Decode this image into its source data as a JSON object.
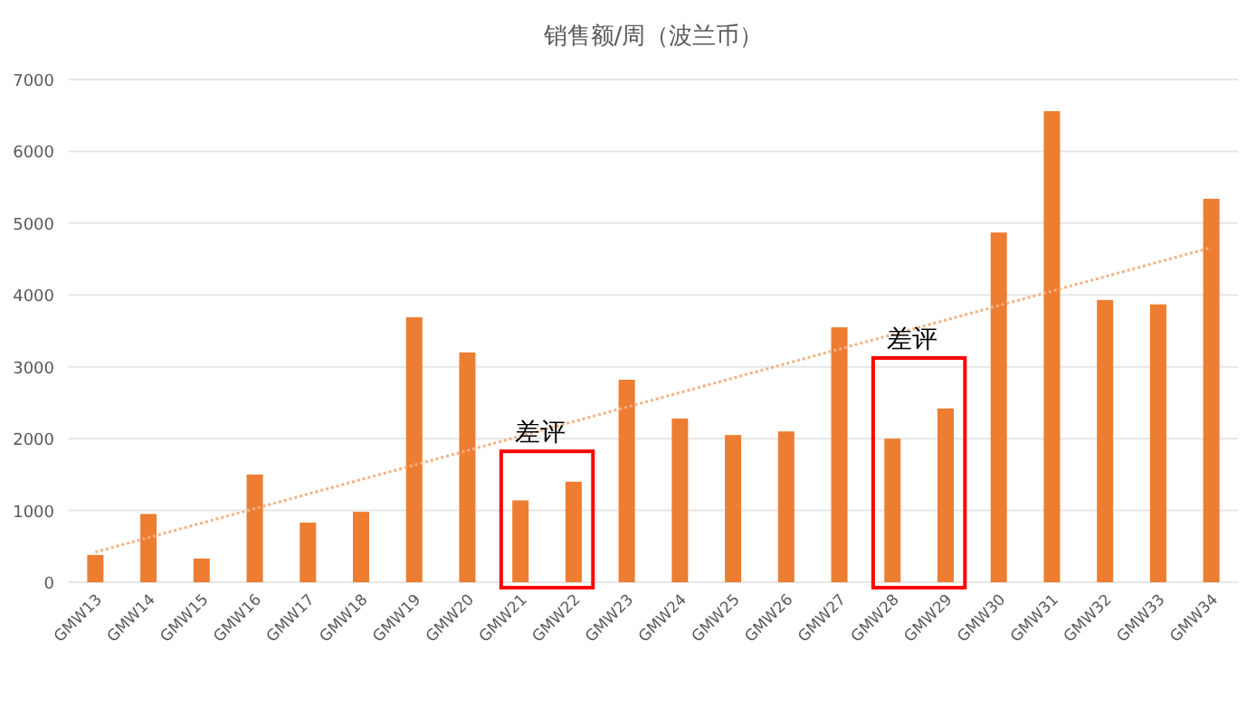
{
  "chart_data": {
    "type": "bar",
    "title": "销售额/周（波兰币）",
    "categories": [
      "GMW13",
      "GMW14",
      "GMW15",
      "GMW16",
      "GMW17",
      "GMW18",
      "GMW19",
      "GMW20",
      "GMW21",
      "GMW22",
      "GMW23",
      "GMW24",
      "GMW25",
      "GMW26",
      "GMW27",
      "GMW28",
      "GMW29",
      "GMW30",
      "GMW31",
      "GMW32",
      "GMW33",
      "GMW34"
    ],
    "series": [
      {
        "color": "#ed7d31",
        "values": [
          380,
          950,
          330,
          1500,
          830,
          980,
          3690,
          3200,
          1140,
          1400,
          2820,
          2280,
          2050,
          2100,
          3550,
          2000,
          2420,
          4870,
          6560,
          3930,
          3870,
          5340
        ]
      },
      {
        "type": "line",
        "x": [
          "GMW13",
          "GMW34"
        ],
        "values": [
          420,
          4660
        ],
        "color": "#f4b183",
        "line_style": "dotted",
        "marker": "none"
      }
    ],
    "annotations": [
      {
        "text": "差评",
        "x": "GMW21",
        "y": 2100
      },
      {
        "text": "差评",
        "x": "GMW28",
        "y": 3400
      }
    ],
    "ylim": [
      0,
      7000
    ],
    "yticks": [
      0,
      1000,
      2000,
      3000,
      4000,
      5000,
      6000,
      7000
    ],
    "grid": "y"
  }
}
